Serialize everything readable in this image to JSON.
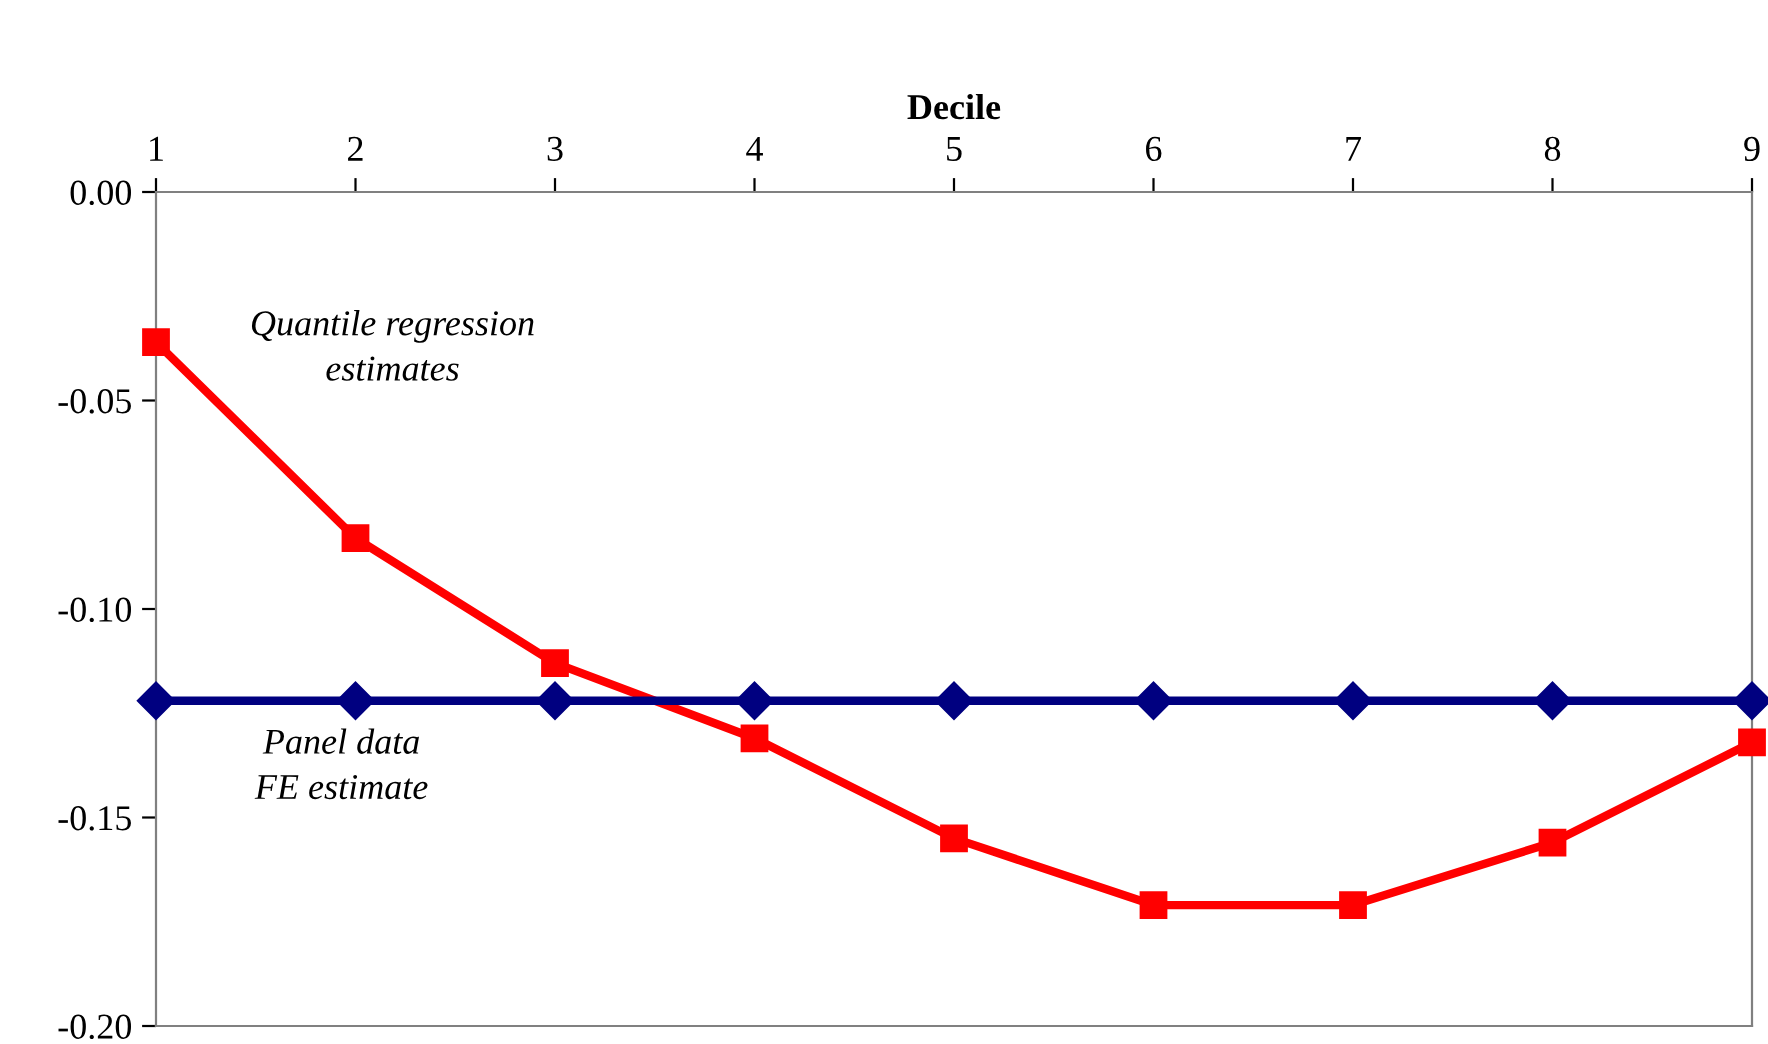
{
  "chart_data": {
    "type": "line",
    "xlabel": "Decile",
    "x": [
      1,
      2,
      3,
      4,
      5,
      6,
      7,
      8,
      9
    ],
    "series": [
      {
        "name": "Quantile regression\nestimates",
        "color": "#ff0000",
        "marker": "square",
        "values": [
          -0.036,
          -0.083,
          -0.113,
          -0.131,
          -0.155,
          -0.171,
          -0.171,
          -0.156,
          -0.132
        ]
      },
      {
        "name": "Panel data\nFE estimate",
        "color": "#000080",
        "marker": "diamond",
        "values": [
          -0.122,
          -0.122,
          -0.122,
          -0.122,
          -0.122,
          -0.122,
          -0.122,
          -0.122,
          -0.122
        ]
      }
    ],
    "xlim": [
      1,
      9
    ],
    "xticks": [
      1,
      2,
      3,
      4,
      5,
      6,
      7,
      8,
      9
    ],
    "ylim": [
      -0.2,
      0
    ],
    "yticks": [
      {
        "value": 0,
        "label": "0.00"
      },
      {
        "value": -0.05,
        "label": "-0.05"
      },
      {
        "value": -0.1,
        "label": "-0.10"
      },
      {
        "value": -0.15,
        "label": "-0.15"
      },
      {
        "value": -0.2,
        "label": "-0.20"
      }
    ],
    "grid": false,
    "legend": false,
    "line_style": "solid"
  }
}
